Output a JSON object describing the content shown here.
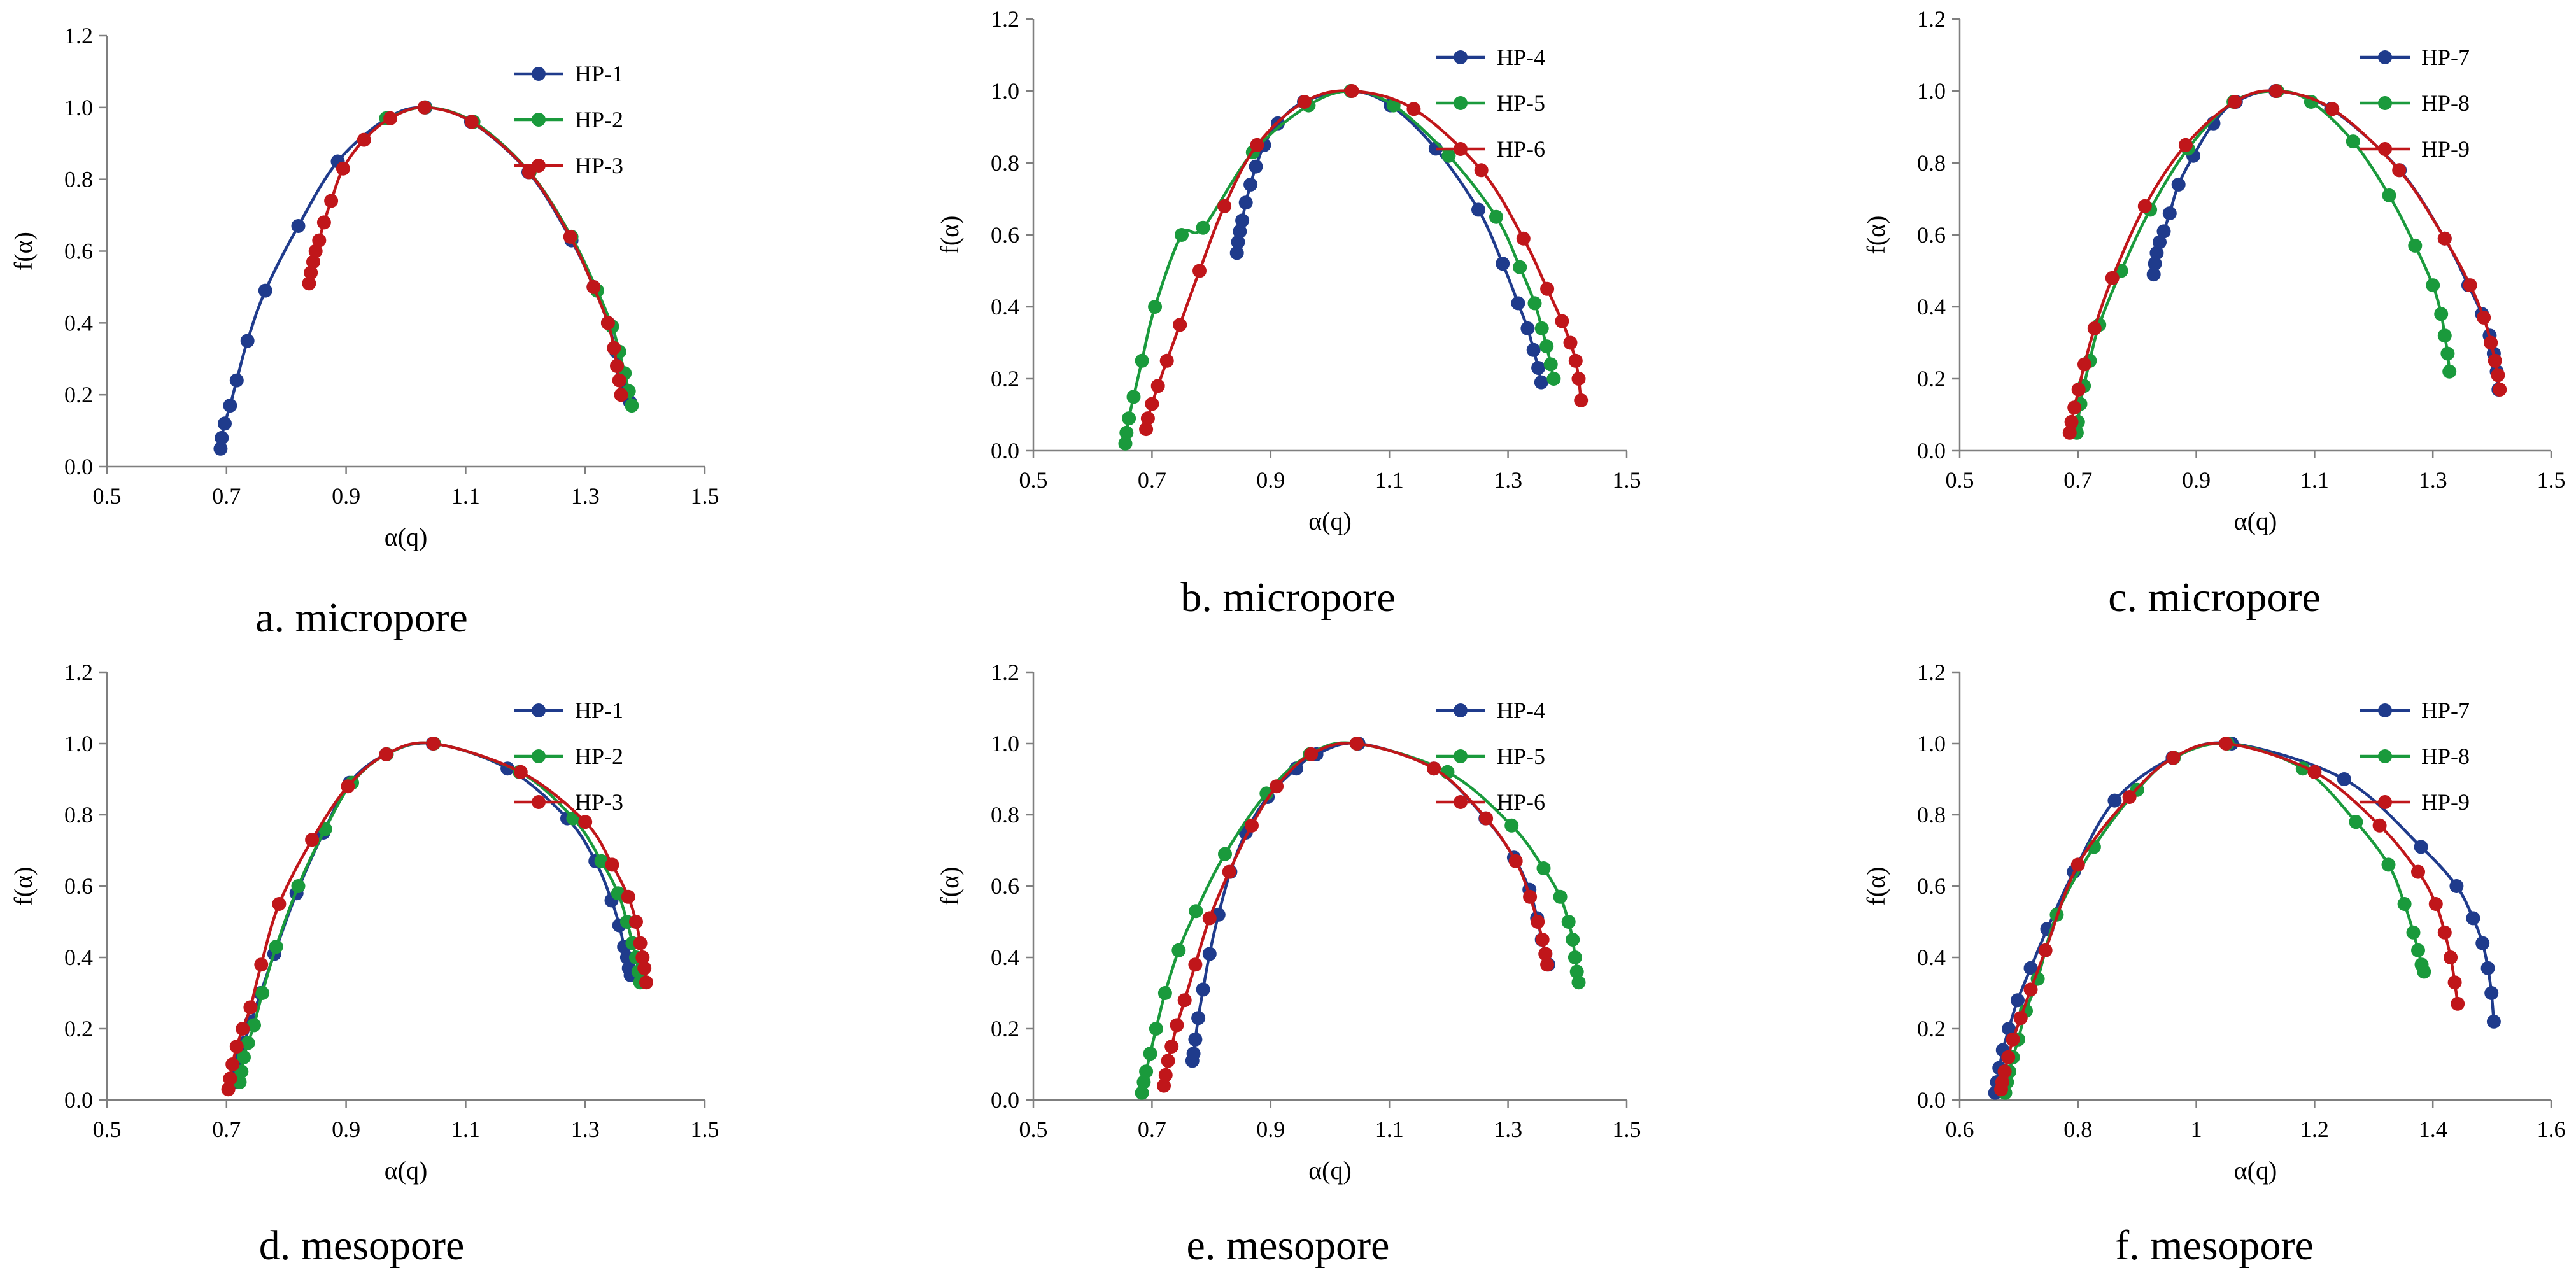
{
  "colors": {
    "blue": "#1f3b8c",
    "green": "#1a9a3c",
    "red": "#c0161a",
    "axis": "#7f7f7f"
  },
  "chart_data": [
    {
      "type": "scatter",
      "caption": "a. micropore",
      "xlabel": "α(q)",
      "ylabel": "f(α)",
      "xlim": [
        0.5,
        1.5
      ],
      "ylim": [
        0,
        1.2
      ],
      "xticks": [
        "0.5",
        "0.7",
        "0.9",
        "1.1",
        "1.3",
        "1.5"
      ],
      "yticks": [
        "0.0",
        "0.2",
        "0.4",
        "0.6",
        "0.8",
        "1.0",
        "1.2"
      ],
      "series": [
        {
          "name": "HP-1",
          "color": "blue",
          "x": [
            0.69,
            0.692,
            0.697,
            0.706,
            0.717,
            0.735,
            0.765,
            0.82,
            0.886,
            0.969,
            1.033,
            1.109,
            1.205,
            1.277,
            1.314,
            1.338,
            1.352,
            1.363,
            1.37,
            1.375
          ],
          "y": [
            0.05,
            0.08,
            0.12,
            0.17,
            0.24,
            0.35,
            0.49,
            0.67,
            0.85,
            0.97,
            1.0,
            0.96,
            0.82,
            0.63,
            0.5,
            0.4,
            0.32,
            0.26,
            0.21,
            0.18
          ]
        },
        {
          "name": "HP-2",
          "color": "green",
          "x": [
            0.967,
            1.032,
            1.113,
            1.207,
            1.277,
            1.32,
            1.345,
            1.357,
            1.366,
            1.373,
            1.378
          ],
          "y": [
            0.97,
            1.0,
            0.96,
            0.82,
            0.64,
            0.49,
            0.39,
            0.32,
            0.26,
            0.21,
            0.17
          ]
        },
        {
          "name": "HP-3",
          "color": "red",
          "x": [
            0.838,
            0.841,
            0.845,
            0.849,
            0.855,
            0.863,
            0.875,
            0.895,
            0.93,
            0.974,
            1.031,
            1.11,
            1.206,
            1.275,
            1.314,
            1.338,
            1.348,
            1.353,
            1.357,
            1.36
          ],
          "y": [
            0.51,
            0.54,
            0.57,
            0.6,
            0.63,
            0.68,
            0.74,
            0.83,
            0.91,
            0.97,
            1.0,
            0.96,
            0.82,
            0.64,
            0.5,
            0.4,
            0.33,
            0.28,
            0.24,
            0.2
          ]
        }
      ]
    },
    {
      "type": "scatter",
      "caption": "b. micropore",
      "xlabel": "α(q)",
      "ylabel": "f(α)",
      "xlim": [
        0.5,
        1.5
      ],
      "ylim": [
        0,
        1.2
      ],
      "xticks": [
        "0.5",
        "0.7",
        "0.9",
        "1.1",
        "1.3",
        "1.5"
      ],
      "yticks": [
        "0.0",
        "0.2",
        "0.4",
        "0.6",
        "0.8",
        "1.0",
        "1.2"
      ],
      "series": [
        {
          "name": "HP-4",
          "color": "blue",
          "x": [
            0.843,
            0.845,
            0.848,
            0.852,
            0.858,
            0.866,
            0.875,
            0.889,
            0.912,
            0.956,
            1.035,
            1.102,
            1.178,
            1.25,
            1.291,
            1.317,
            1.333,
            1.343,
            1.351,
            1.356
          ],
          "y": [
            0.55,
            0.58,
            0.61,
            0.64,
            0.69,
            0.74,
            0.79,
            0.85,
            0.91,
            0.97,
            1.0,
            0.96,
            0.84,
            0.67,
            0.52,
            0.41,
            0.34,
            0.28,
            0.23,
            0.19
          ]
        },
        {
          "name": "HP-5",
          "color": "green",
          "x": [
            0.655,
            0.657,
            0.661,
            0.669,
            0.683,
            0.705,
            0.75,
            0.786,
            0.87,
            0.964,
            1.035,
            1.107,
            1.2,
            1.28,
            1.32,
            1.345,
            1.357,
            1.365,
            1.372,
            1.377
          ],
          "y": [
            0.02,
            0.05,
            0.09,
            0.15,
            0.25,
            0.4,
            0.6,
            0.62,
            0.83,
            0.96,
            1.0,
            0.96,
            0.82,
            0.65,
            0.51,
            0.41,
            0.34,
            0.29,
            0.24,
            0.2
          ]
        },
        {
          "name": "HP-6",
          "color": "red",
          "x": [
            0.69,
            0.693,
            0.7,
            0.71,
            0.725,
            0.747,
            0.78,
            0.822,
            0.877,
            0.957,
            1.037,
            1.141,
            1.255,
            1.326,
            1.366,
            1.391,
            1.405,
            1.414,
            1.419,
            1.423
          ],
          "y": [
            0.06,
            0.09,
            0.13,
            0.18,
            0.25,
            0.35,
            0.5,
            0.68,
            0.85,
            0.97,
            1.0,
            0.95,
            0.78,
            0.59,
            0.45,
            0.36,
            0.3,
            0.25,
            0.2,
            0.14
          ]
        }
      ]
    },
    {
      "type": "scatter",
      "caption": "c. micropore",
      "xlabel": "α(q)",
      "ylabel": "f(α)",
      "xlim": [
        0.5,
        1.5
      ],
      "ylim": [
        0,
        1.2
      ],
      "xticks": [
        "0.5",
        "0.7",
        "0.9",
        "1.1",
        "1.3",
        "1.5"
      ],
      "yticks": [
        "0.0",
        "0.2",
        "0.4",
        "0.6",
        "0.8",
        "1.0",
        "1.2"
      ],
      "series": [
        {
          "name": "HP-7",
          "color": "blue",
          "x": [
            0.828,
            0.83,
            0.833,
            0.838,
            0.845,
            0.855,
            0.87,
            0.895,
            0.929,
            0.967,
            1.034,
            1.128,
            1.244,
            1.32,
            1.36,
            1.383,
            1.396,
            1.403,
            1.408,
            1.411
          ],
          "y": [
            0.49,
            0.52,
            0.55,
            0.58,
            0.61,
            0.66,
            0.74,
            0.82,
            0.91,
            0.97,
            1.0,
            0.95,
            0.78,
            0.59,
            0.46,
            0.38,
            0.32,
            0.27,
            0.22,
            0.17
          ]
        },
        {
          "name": "HP-8",
          "color": "green",
          "x": [
            0.698,
            0.7,
            0.704,
            0.71,
            0.72,
            0.736,
            0.773,
            0.822,
            0.886,
            0.963,
            1.037,
            1.094,
            1.165,
            1.226,
            1.27,
            1.3,
            1.314,
            1.32,
            1.325,
            1.328
          ],
          "y": [
            0.05,
            0.08,
            0.13,
            0.18,
            0.25,
            0.35,
            0.5,
            0.67,
            0.84,
            0.97,
            1.0,
            0.97,
            0.86,
            0.71,
            0.57,
            0.46,
            0.38,
            0.32,
            0.27,
            0.22
          ]
        },
        {
          "name": "HP-9",
          "color": "red",
          "x": [
            0.686,
            0.689,
            0.694,
            0.701,
            0.711,
            0.728,
            0.758,
            0.813,
            0.882,
            0.965,
            1.035,
            1.13,
            1.243,
            1.32,
            1.363,
            1.386,
            1.398,
            1.405,
            1.41,
            1.413
          ],
          "y": [
            0.05,
            0.08,
            0.12,
            0.17,
            0.24,
            0.34,
            0.48,
            0.68,
            0.85,
            0.97,
            1.0,
            0.95,
            0.78,
            0.59,
            0.46,
            0.37,
            0.3,
            0.25,
            0.21,
            0.17
          ]
        }
      ]
    },
    {
      "type": "scatter",
      "caption": "d. mesopore",
      "xlabel": "α(q)",
      "ylabel": "f(α)",
      "xlim": [
        0.5,
        1.5
      ],
      "ylim": [
        0,
        1.2
      ],
      "xticks": [
        "0.5",
        "0.7",
        "0.9",
        "1.1",
        "1.3",
        "1.5"
      ],
      "yticks": [
        "0.0",
        "0.2",
        "0.4",
        "0.6",
        "0.8",
        "1.0",
        "1.2"
      ],
      "series": [
        {
          "name": "HP-1",
          "color": "blue",
          "x": [
            0.718,
            0.72,
            0.724,
            0.73,
            0.741,
            0.757,
            0.78,
            0.817,
            0.862,
            0.906,
            0.967,
            1.045,
            1.17,
            1.27,
            1.317,
            1.344,
            1.357,
            1.365,
            1.37,
            1.373,
            1.376
          ],
          "y": [
            0.05,
            0.08,
            0.12,
            0.16,
            0.22,
            0.3,
            0.41,
            0.58,
            0.75,
            0.89,
            0.97,
            1.0,
            0.93,
            0.79,
            0.67,
            0.56,
            0.49,
            0.43,
            0.4,
            0.37,
            0.35
          ]
        },
        {
          "name": "HP-2",
          "color": "green",
          "x": [
            0.722,
            0.725,
            0.729,
            0.736,
            0.746,
            0.76,
            0.783,
            0.82,
            0.865,
            0.91,
            0.968,
            1.047,
            1.19,
            1.28,
            1.327,
            1.355,
            1.37,
            1.379,
            1.385,
            1.389,
            1.392
          ],
          "y": [
            0.05,
            0.08,
            0.12,
            0.16,
            0.21,
            0.3,
            0.43,
            0.6,
            0.76,
            0.89,
            0.97,
            1.0,
            0.92,
            0.79,
            0.67,
            0.58,
            0.5,
            0.44,
            0.4,
            0.36,
            0.33
          ]
        },
        {
          "name": "HP-3",
          "color": "red",
          "x": [
            0.703,
            0.706,
            0.71,
            0.717,
            0.727,
            0.74,
            0.758,
            0.788,
            0.843,
            0.903,
            0.967,
            1.046,
            1.192,
            1.3,
            1.345,
            1.372,
            1.385,
            1.392,
            1.396,
            1.399,
            1.402
          ],
          "y": [
            0.03,
            0.06,
            0.1,
            0.15,
            0.2,
            0.26,
            0.38,
            0.55,
            0.73,
            0.88,
            0.97,
            1.0,
            0.92,
            0.78,
            0.66,
            0.57,
            0.5,
            0.44,
            0.4,
            0.37,
            0.33
          ]
        }
      ]
    },
    {
      "type": "scatter",
      "caption": "e. mesopore",
      "xlabel": "α(q)",
      "ylabel": "f(α)",
      "xlim": [
        0.5,
        1.5
      ],
      "ylim": [
        0,
        1.2
      ],
      "xticks": [
        "0.5",
        "0.7",
        "0.9",
        "1.1",
        "1.3",
        "1.5"
      ],
      "yticks": [
        "0.0",
        "0.2",
        "0.4",
        "0.6",
        "0.8",
        "1.0",
        "1.2"
      ],
      "series": [
        {
          "name": "HP-4",
          "color": "blue",
          "x": [
            0.768,
            0.77,
            0.773,
            0.778,
            0.786,
            0.797,
            0.812,
            0.832,
            0.858,
            0.895,
            0.943,
            0.977,
            1.048,
            1.175,
            1.262,
            1.31,
            1.336,
            1.349,
            1.357,
            1.363,
            1.368
          ],
          "y": [
            0.11,
            0.13,
            0.17,
            0.23,
            0.31,
            0.41,
            0.52,
            0.64,
            0.75,
            0.85,
            0.93,
            0.97,
            1.0,
            0.93,
            0.79,
            0.68,
            0.59,
            0.51,
            0.45,
            0.41,
            0.38
          ]
        },
        {
          "name": "HP-5",
          "color": "green",
          "x": [
            0.683,
            0.686,
            0.69,
            0.697,
            0.707,
            0.722,
            0.745,
            0.774,
            0.823,
            0.893,
            0.966,
            1.045,
            1.198,
            1.306,
            1.36,
            1.388,
            1.402,
            1.409,
            1.413,
            1.416,
            1.419
          ],
          "y": [
            0.02,
            0.05,
            0.08,
            0.13,
            0.2,
            0.3,
            0.42,
            0.53,
            0.69,
            0.86,
            0.97,
            1.0,
            0.92,
            0.77,
            0.65,
            0.57,
            0.5,
            0.45,
            0.4,
            0.36,
            0.33
          ]
        },
        {
          "name": "HP-6",
          "color": "red",
          "x": [
            0.72,
            0.723,
            0.727,
            0.733,
            0.742,
            0.755,
            0.773,
            0.797,
            0.83,
            0.868,
            0.91,
            0.968,
            1.045,
            1.175,
            1.263,
            1.313,
            1.337,
            1.35,
            1.358,
            1.363,
            1.366
          ],
          "y": [
            0.04,
            0.07,
            0.11,
            0.15,
            0.21,
            0.28,
            0.38,
            0.51,
            0.64,
            0.77,
            0.88,
            0.97,
            1.0,
            0.93,
            0.79,
            0.67,
            0.57,
            0.5,
            0.45,
            0.41,
            0.38
          ]
        }
      ]
    },
    {
      "type": "scatter",
      "caption": "f. mesopore",
      "xlabel": "α(q)",
      "ylabel": "f(α)",
      "xlim": [
        0.6,
        1.6
      ],
      "ylim": [
        0,
        1.2
      ],
      "xticks": [
        "0.6",
        "0.8",
        "1",
        "1.2",
        "1.4",
        "1.6"
      ],
      "yticks": [
        "0.0",
        "0.2",
        "0.4",
        "0.6",
        "0.8",
        "1.0",
        "1.2"
      ],
      "series": [
        {
          "name": "HP-7",
          "color": "blue",
          "x": [
            0.66,
            0.663,
            0.667,
            0.673,
            0.683,
            0.698,
            0.72,
            0.748,
            0.793,
            0.862,
            0.96,
            1.06,
            1.25,
            1.38,
            1.44,
            1.468,
            1.484,
            1.493,
            1.499,
            1.503
          ],
          "y": [
            0.02,
            0.05,
            0.09,
            0.14,
            0.2,
            0.28,
            0.37,
            0.48,
            0.64,
            0.84,
            0.96,
            1.0,
            0.9,
            0.71,
            0.6,
            0.51,
            0.44,
            0.37,
            0.3,
            0.22
          ]
        },
        {
          "name": "HP-8",
          "color": "green",
          "x": [
            0.677,
            0.68,
            0.684,
            0.69,
            0.699,
            0.712,
            0.732,
            0.764,
            0.827,
            0.9,
            0.962,
            1.053,
            1.18,
            1.27,
            1.325,
            1.352,
            1.367,
            1.375,
            1.381,
            1.385
          ],
          "y": [
            0.02,
            0.05,
            0.08,
            0.12,
            0.17,
            0.25,
            0.34,
            0.52,
            0.71,
            0.87,
            0.96,
            1.0,
            0.93,
            0.78,
            0.66,
            0.55,
            0.47,
            0.42,
            0.38,
            0.36
          ]
        },
        {
          "name": "HP-9",
          "color": "red",
          "x": [
            0.67,
            0.672,
            0.676,
            0.682,
            0.69,
            0.703,
            0.72,
            0.745,
            0.8,
            0.887,
            0.961,
            1.05,
            1.2,
            1.31,
            1.375,
            1.405,
            1.42,
            1.43,
            1.437,
            1.442
          ],
          "y": [
            0.03,
            0.05,
            0.08,
            0.12,
            0.17,
            0.23,
            0.31,
            0.42,
            0.66,
            0.85,
            0.96,
            1.0,
            0.92,
            0.77,
            0.64,
            0.55,
            0.47,
            0.4,
            0.33,
            0.27
          ]
        }
      ]
    }
  ]
}
